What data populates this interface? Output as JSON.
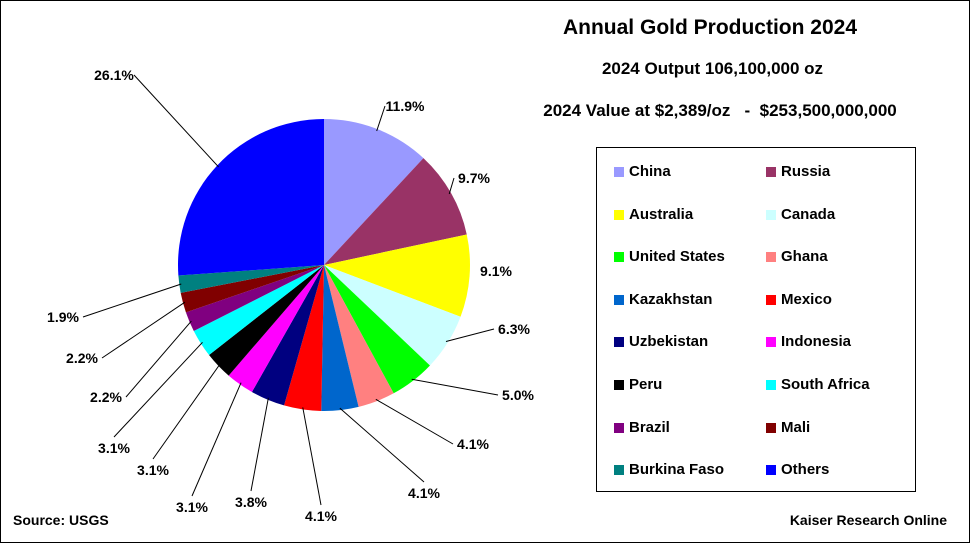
{
  "chart_data": {
    "type": "pie",
    "title": "Annual Gold Production 2024",
    "subtitle": "2024 Output 106,100,000 oz",
    "subtitle2": "2024 Value at $2,389/oz   -  $253,500,000,000",
    "legend_position": "right",
    "slices": [
      {
        "name": "China",
        "value": 11.9,
        "label": "11.9%",
        "color": "#9999FF"
      },
      {
        "name": "Russia",
        "value": 9.7,
        "label": "9.7%",
        "color": "#993366"
      },
      {
        "name": "Australia",
        "value": 9.1,
        "label": "9.1%",
        "color": "#FFFF00"
      },
      {
        "name": "Canada",
        "value": 6.3,
        "label": "6.3%",
        "color": "#CCFFFF"
      },
      {
        "name": "United States",
        "value": 5.0,
        "label": "5.0%",
        "color": "#00FF00"
      },
      {
        "name": "Ghana",
        "value": 4.1,
        "label": "4.1%",
        "color": "#FF8080"
      },
      {
        "name": "Kazakhstan",
        "value": 4.1,
        "label": "4.1%",
        "color": "#0066CC"
      },
      {
        "name": "Mexico",
        "value": 4.1,
        "label": "4.1%",
        "color": "#FF0000"
      },
      {
        "name": "Uzbekistan",
        "value": 3.8,
        "label": "3.8%",
        "color": "#000080"
      },
      {
        "name": "Indonesia",
        "value": 3.1,
        "label": "3.1%",
        "color": "#FF00FF"
      },
      {
        "name": "Peru",
        "value": 3.1,
        "label": "3.1%",
        "color": "#000000"
      },
      {
        "name": "South Africa",
        "value": 3.1,
        "label": "3.1%",
        "color": "#00FFFF"
      },
      {
        "name": "Brazil",
        "value": 2.2,
        "label": "2.2%",
        "color": "#800080"
      },
      {
        "name": "Mali",
        "value": 2.2,
        "label": "2.2%",
        "color": "#800000"
      },
      {
        "name": "Burkina Faso",
        "value": 1.9,
        "label": "1.9%",
        "color": "#008080"
      },
      {
        "name": "Others",
        "value": 26.1,
        "label": "26.1%",
        "color": "#0000FF"
      }
    ]
  },
  "footer": {
    "source": "Source: USGS",
    "credit": "Kaiser Research Online"
  }
}
